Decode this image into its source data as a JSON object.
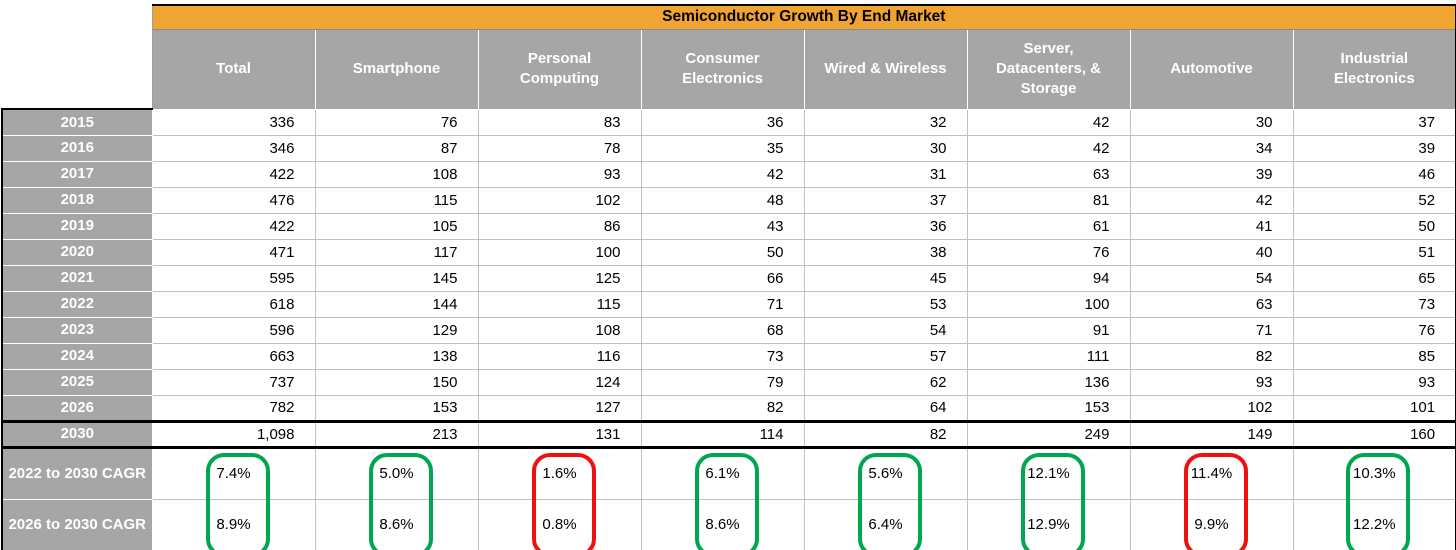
{
  "chart_data": {
    "type": "table",
    "title": "Semiconductor Growth By End Market",
    "columns": [
      "Total",
      "Smartphone",
      "Personal Computing",
      "Consumer Electronics",
      "Wired & Wireless",
      "Server, Datacenters, & Storage",
      "Automotive",
      "Industrial Electronics"
    ],
    "rows": [
      {
        "label": "2015",
        "values": [
          "336",
          "76",
          "83",
          "36",
          "32",
          "42",
          "30",
          "37"
        ]
      },
      {
        "label": "2016",
        "values": [
          "346",
          "87",
          "78",
          "35",
          "30",
          "42",
          "34",
          "39"
        ]
      },
      {
        "label": "2017",
        "values": [
          "422",
          "108",
          "93",
          "42",
          "31",
          "63",
          "39",
          "46"
        ]
      },
      {
        "label": "2018",
        "values": [
          "476",
          "115",
          "102",
          "48",
          "37",
          "81",
          "42",
          "52"
        ]
      },
      {
        "label": "2019",
        "values": [
          "422",
          "105",
          "86",
          "43",
          "36",
          "61",
          "41",
          "50"
        ]
      },
      {
        "label": "2020",
        "values": [
          "471",
          "117",
          "100",
          "50",
          "38",
          "76",
          "40",
          "51"
        ]
      },
      {
        "label": "2021",
        "values": [
          "595",
          "145",
          "125",
          "66",
          "45",
          "94",
          "54",
          "65"
        ]
      },
      {
        "label": "2022",
        "values": [
          "618",
          "144",
          "115",
          "71",
          "53",
          "100",
          "63",
          "73"
        ]
      },
      {
        "label": "2023",
        "values": [
          "596",
          "129",
          "108",
          "68",
          "54",
          "91",
          "71",
          "76"
        ]
      },
      {
        "label": "2024",
        "values": [
          "663",
          "138",
          "116",
          "73",
          "57",
          "111",
          "82",
          "85"
        ]
      },
      {
        "label": "2025",
        "values": [
          "737",
          "150",
          "124",
          "79",
          "62",
          "136",
          "93",
          "93"
        ]
      },
      {
        "label": "2026",
        "values": [
          "782",
          "153",
          "127",
          "82",
          "64",
          "153",
          "102",
          "101"
        ]
      },
      {
        "label": "2030",
        "values": [
          "1,098",
          "213",
          "131",
          "114",
          "82",
          "249",
          "149",
          "160"
        ]
      }
    ],
    "cagr_rows": [
      {
        "label": "2022 to 2030 CAGR",
        "values": [
          "7.4%",
          "5.0%",
          "1.6%",
          "6.1%",
          "5.6%",
          "12.1%",
          "11.4%",
          "10.3%"
        ]
      },
      {
        "label": "2026 to 2030 CAGR",
        "values": [
          "8.9%",
          "8.6%",
          "0.8%",
          "8.6%",
          "6.4%",
          "12.9%",
          "9.9%",
          "12.2%"
        ]
      }
    ],
    "cagr_highlights": [
      "green",
      "green",
      "red",
      "green",
      "green",
      "green",
      "red",
      "green"
    ]
  },
  "colors": {
    "green": "#00A651",
    "red": "#EE1111",
    "header_orange": "#F0A432",
    "label_gray": "#A6A6A6"
  }
}
